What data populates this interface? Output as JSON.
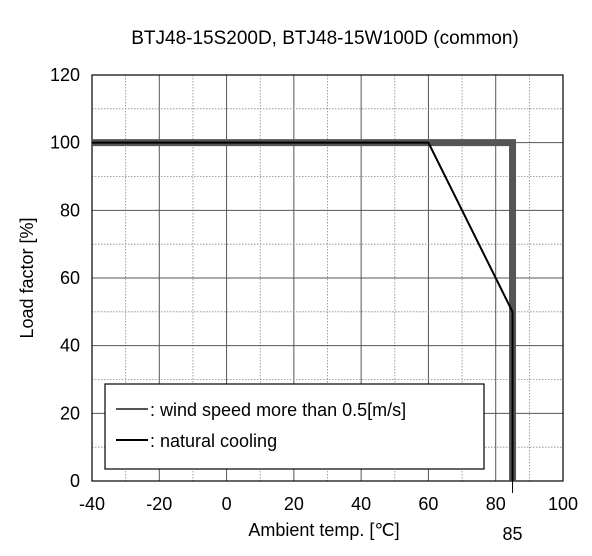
{
  "chart_data": {
    "type": "line",
    "title": "BTJ48-15S200D, BTJ48-15W100D (common)",
    "xlabel": "Ambient temp. [℃]",
    "ylabel": "Load factor [%]",
    "xlim": [
      -40,
      100
    ],
    "ylim": [
      0,
      120
    ],
    "x_major_ticks": [
      -40,
      -20,
      0,
      20,
      40,
      60,
      80,
      100
    ],
    "x_tick_labels": [
      "-40",
      "-20",
      "0",
      "20",
      "40",
      "60",
      "80",
      "100"
    ],
    "y_major_ticks": [
      0,
      20,
      40,
      60,
      80,
      100,
      120
    ],
    "y_tick_labels": [
      "0",
      "20",
      "40",
      "60",
      "80",
      "100",
      "120"
    ],
    "x_minor_step": 10,
    "y_minor_step": 10,
    "grid": true,
    "legend_position": "bottom-left",
    "extra_x_tick": {
      "value": 85,
      "label": "85"
    },
    "series": [
      {
        "name": ": wind speed more than 0.5[m/s]",
        "color": "#555555",
        "points": [
          [
            -40,
            100
          ],
          [
            85,
            100
          ],
          [
            85,
            0
          ]
        ]
      },
      {
        "name": ": natural cooling",
        "color": "#000000",
        "points": [
          [
            -40,
            100
          ],
          [
            60,
            100
          ],
          [
            85,
            50
          ],
          [
            85,
            0
          ]
        ]
      }
    ]
  }
}
